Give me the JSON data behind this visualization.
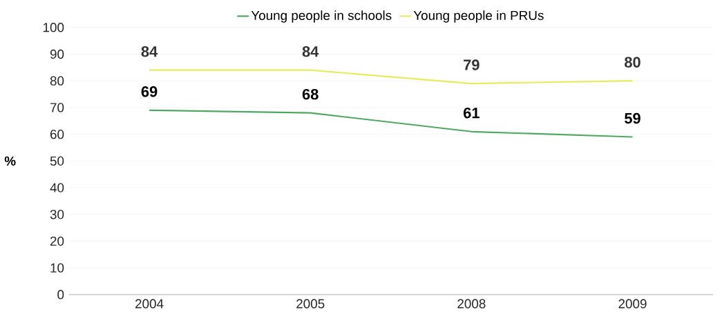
{
  "chart_data": {
    "type": "line",
    "ylabel": "%",
    "categories": [
      "2004",
      "2005",
      "2008",
      "2009"
    ],
    "series": [
      {
        "name": "Young people in schools",
        "color": "#4ea862",
        "values": [
          69,
          68,
          61,
          59
        ]
      },
      {
        "name": "Young people in PRUs",
        "color": "#e6ec5c",
        "values": [
          84,
          84,
          79,
          80
        ]
      }
    ],
    "ylim": [
      0,
      100
    ],
    "yticks": [
      0,
      10,
      20,
      30,
      40,
      50,
      60,
      70,
      80,
      90,
      100
    ],
    "grid": "y",
    "legend": "top",
    "marker": "none",
    "line_style": "solid",
    "data_labels": true
  }
}
